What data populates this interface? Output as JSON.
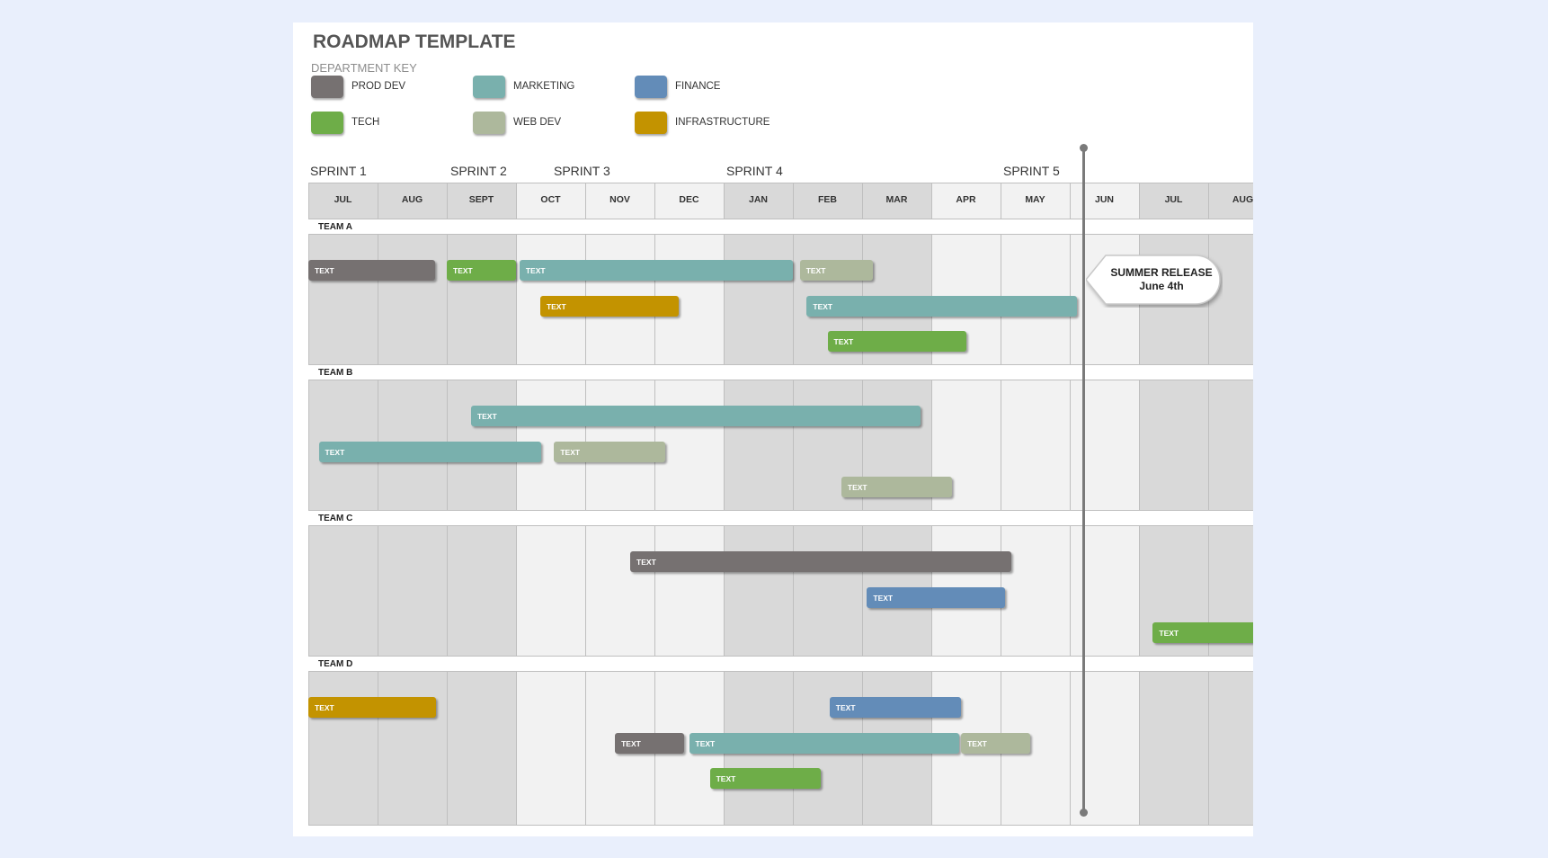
{
  "title": "ROADMAP TEMPLATE",
  "department_key": {
    "label": "DEPARTMENT KEY",
    "items": [
      {
        "label": "PROD DEV",
        "color": "#767171"
      },
      {
        "label": "MARKETING",
        "color": "#79b0ad"
      },
      {
        "label": "FINANCE",
        "color": "#638cb8"
      },
      {
        "label": "TECH",
        "color": "#6ead48"
      },
      {
        "label": "WEB DEV",
        "color": "#adb89c"
      },
      {
        "label": "INFRASTRUCTURE",
        "color": "#c39300"
      }
    ]
  },
  "sprints": [
    "SPRINT 1",
    "SPRINT 2",
    "SPRINT 3",
    "SPRINT 4",
    "SPRINT 5"
  ],
  "months": [
    "JUL",
    "AUG",
    "SEPT",
    "OCT",
    "NOV",
    "DEC",
    "JAN",
    "FEB",
    "MAR",
    "APR",
    "MAY",
    "JUN",
    "JUL",
    "AUG"
  ],
  "chart_data": {
    "type": "table",
    "teams": [
      {
        "name": "TEAM A",
        "tasks": [
          {
            "label": "TEXT",
            "dept": "PROD DEV",
            "start": 0.0,
            "end": 1.83,
            "lane": 0
          },
          {
            "label": "TEXT",
            "dept": "TECH",
            "start": 2.0,
            "end": 3.0,
            "lane": 0
          },
          {
            "label": "TEXT",
            "dept": "MARKETING",
            "start": 3.05,
            "end": 7.0,
            "lane": 0
          },
          {
            "label": "TEXT",
            "dept": "WEB DEV",
            "start": 7.1,
            "end": 8.15,
            "lane": 0
          },
          {
            "label": "TEXT",
            "dept": "INFRASTRUCTURE",
            "start": 3.35,
            "end": 5.35,
            "lane": 1
          },
          {
            "label": "TEXT",
            "dept": "MARKETING",
            "start": 7.2,
            "end": 11.1,
            "lane": 1
          },
          {
            "label": "TEXT",
            "dept": "TECH",
            "start": 7.5,
            "end": 9.5,
            "lane": 2
          }
        ]
      },
      {
        "name": "TEAM B",
        "tasks": [
          {
            "label": "TEXT",
            "dept": "MARKETING",
            "start": 2.35,
            "end": 8.85,
            "lane": 0
          },
          {
            "label": "TEXT",
            "dept": "MARKETING",
            "start": 0.15,
            "end": 3.37,
            "lane": 1
          },
          {
            "label": "TEXT",
            "dept": "WEB DEV",
            "start": 3.55,
            "end": 5.15,
            "lane": 1
          },
          {
            "label": "TEXT",
            "dept": "WEB DEV",
            "start": 7.7,
            "end": 9.3,
            "lane": 2
          }
        ]
      },
      {
        "name": "TEAM C",
        "tasks": [
          {
            "label": "TEXT",
            "dept": "PROD DEV",
            "start": 4.65,
            "end": 10.15,
            "lane": 0
          },
          {
            "label": "TEXT",
            "dept": "FINANCE",
            "start": 8.07,
            "end": 10.07,
            "lane": 1
          },
          {
            "label": "TEXT",
            "dept": "TECH",
            "start": 12.2,
            "end": 14.0,
            "lane": 2
          }
        ]
      },
      {
        "name": "TEAM D",
        "tasks": [
          {
            "label": "TEXT",
            "dept": "INFRASTRUCTURE",
            "start": 0.0,
            "end": 1.85,
            "lane": 0
          },
          {
            "label": "TEXT",
            "dept": "FINANCE",
            "start": 7.53,
            "end": 9.43,
            "lane": 0
          },
          {
            "label": "TEXT",
            "dept": "PROD DEV",
            "start": 4.43,
            "end": 5.43,
            "lane": 1
          },
          {
            "label": "TEXT",
            "dept": "MARKETING",
            "start": 5.5,
            "end": 9.4,
            "lane": 1
          },
          {
            "label": "TEXT",
            "dept": "WEB DEV",
            "start": 9.43,
            "end": 10.43,
            "lane": 1
          },
          {
            "label": "TEXT",
            "dept": "TECH",
            "start": 5.8,
            "end": 7.4,
            "lane": 2
          }
        ]
      }
    ]
  },
  "milestone": {
    "title": "SUMMER RELEASE",
    "date": "June 4th"
  }
}
